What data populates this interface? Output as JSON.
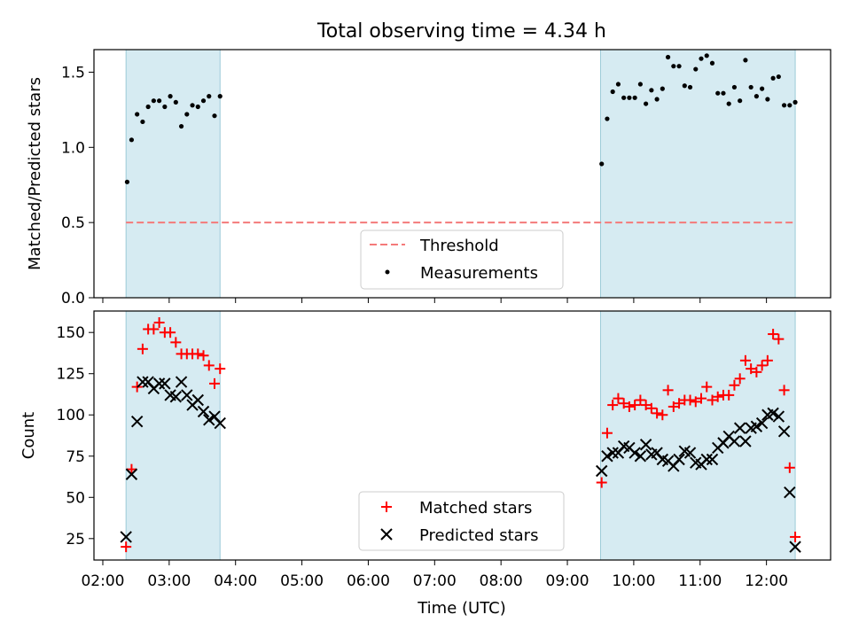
{
  "figure": {
    "title": "Total observing time = 4.34 h",
    "xlabel": "Time (UTC)",
    "x_ticks": [
      "02:00",
      "03:00",
      "04:00",
      "05:00",
      "06:00",
      "07:00",
      "08:00",
      "09:00",
      "10:00",
      "11:00",
      "12:00"
    ]
  },
  "chart_data": [
    {
      "type": "scatter",
      "ylabel": "Matched/Predicted stars",
      "xlim": [
        "01:52",
        "12:58"
      ],
      "ylim": [
        0,
        1.65
      ],
      "y_ticks": [
        "0.0",
        "0.5",
        "1.0",
        "1.5"
      ],
      "legend": {
        "placement": "bottom-center",
        "entries": [
          "Threshold",
          "Measurements"
        ]
      },
      "shaded_intervals": [
        [
          "02:21",
          "03:46"
        ],
        [
          "09:30",
          "12:26"
        ]
      ],
      "threshold": {
        "name": "Threshold",
        "value": 0.5,
        "x_range": [
          "02:21",
          "12:26"
        ],
        "color": "#f47a7a"
      },
      "series": [
        {
          "name": "Measurements",
          "color": "#000000",
          "points": [
            [
              "02:22",
              0.77
            ],
            [
              "02:26",
              1.05
            ],
            [
              "02:31",
              1.22
            ],
            [
              "02:36",
              1.17
            ],
            [
              "02:41",
              1.27
            ],
            [
              "02:46",
              1.31
            ],
            [
              "02:51",
              1.31
            ],
            [
              "02:56",
              1.27
            ],
            [
              "03:01",
              1.34
            ],
            [
              "03:06",
              1.3
            ],
            [
              "03:11",
              1.14
            ],
            [
              "03:16",
              1.22
            ],
            [
              "03:21",
              1.28
            ],
            [
              "03:26",
              1.27
            ],
            [
              "03:31",
              1.31
            ],
            [
              "03:36",
              1.34
            ],
            [
              "03:41",
              1.21
            ],
            [
              "03:46",
              1.34
            ],
            [
              "09:31",
              0.89
            ],
            [
              "09:36",
              1.19
            ],
            [
              "09:41",
              1.37
            ],
            [
              "09:46",
              1.42
            ],
            [
              "09:51",
              1.33
            ],
            [
              "09:56",
              1.33
            ],
            [
              "10:01",
              1.33
            ],
            [
              "10:06",
              1.42
            ],
            [
              "10:11",
              1.29
            ],
            [
              "10:16",
              1.38
            ],
            [
              "10:21",
              1.32
            ],
            [
              "10:26",
              1.39
            ],
            [
              "10:31",
              1.6
            ],
            [
              "10:36",
              1.54
            ],
            [
              "10:41",
              1.54
            ],
            [
              "10:46",
              1.41
            ],
            [
              "10:51",
              1.4
            ],
            [
              "10:56",
              1.52
            ],
            [
              "11:01",
              1.59
            ],
            [
              "11:06",
              1.61
            ],
            [
              "11:11",
              1.56
            ],
            [
              "11:16",
              1.36
            ],
            [
              "11:21",
              1.36
            ],
            [
              "11:26",
              1.29
            ],
            [
              "11:31",
              1.4
            ],
            [
              "11:36",
              1.31
            ],
            [
              "11:41",
              1.58
            ],
            [
              "11:46",
              1.4
            ],
            [
              "11:51",
              1.34
            ],
            [
              "11:56",
              1.39
            ],
            [
              "12:01",
              1.32
            ],
            [
              "12:06",
              1.46
            ],
            [
              "12:11",
              1.47
            ],
            [
              "12:16",
              1.28
            ],
            [
              "12:21",
              1.28
            ],
            [
              "12:26",
              1.3
            ]
          ]
        }
      ]
    },
    {
      "type": "scatter",
      "ylabel": "Count",
      "xlim": [
        "01:52",
        "12:58"
      ],
      "ylim": [
        12,
        163
      ],
      "y_ticks": [
        "25",
        "50",
        "75",
        "100",
        "125",
        "150"
      ],
      "legend": {
        "placement": "bottom-center",
        "entries": [
          "Matched stars",
          "Predicted stars"
        ]
      },
      "shaded_intervals": [
        [
          "02:21",
          "03:46"
        ],
        [
          "09:30",
          "12:26"
        ]
      ],
      "series": [
        {
          "name": "Matched stars",
          "marker": "+",
          "color": "#ff0000",
          "points": [
            [
              "02:21",
              20
            ],
            [
              "02:26",
              67
            ],
            [
              "02:31",
              117
            ],
            [
              "02:36",
              140
            ],
            [
              "02:41",
              152
            ],
            [
              "02:46",
              152
            ],
            [
              "02:51",
              156
            ],
            [
              "02:56",
              150
            ],
            [
              "03:01",
              150
            ],
            [
              "03:06",
              144
            ],
            [
              "03:11",
              137
            ],
            [
              "03:16",
              137
            ],
            [
              "03:21",
              137
            ],
            [
              "03:26",
              137
            ],
            [
              "03:31",
              136
            ],
            [
              "03:36",
              130
            ],
            [
              "03:41",
              119
            ],
            [
              "03:46",
              128
            ],
            [
              "09:31",
              59
            ],
            [
              "09:36",
              89
            ],
            [
              "09:41",
              106
            ],
            [
              "09:46",
              110
            ],
            [
              "09:51",
              107
            ],
            [
              "09:56",
              105
            ],
            [
              "10:01",
              106
            ],
            [
              "10:06",
              109
            ],
            [
              "10:11",
              106
            ],
            [
              "10:16",
              104
            ],
            [
              "10:21",
              101
            ],
            [
              "10:26",
              100
            ],
            [
              "10:31",
              115
            ],
            [
              "10:36",
              105
            ],
            [
              "10:41",
              107
            ],
            [
              "10:46",
              109
            ],
            [
              "10:51",
              109
            ],
            [
              "10:56",
              108
            ],
            [
              "11:01",
              110
            ],
            [
              "11:06",
              117
            ],
            [
              "11:11",
              109
            ],
            [
              "11:16",
              111
            ],
            [
              "11:21",
              112
            ],
            [
              "11:26",
              112
            ],
            [
              "11:31",
              118
            ],
            [
              "11:36",
              122
            ],
            [
              "11:41",
              133
            ],
            [
              "11:46",
              128
            ],
            [
              "11:51",
              126
            ],
            [
              "11:56",
              130
            ],
            [
              "12:01",
              133
            ],
            [
              "12:06",
              149
            ],
            [
              "12:11",
              146
            ],
            [
              "12:16",
              115
            ],
            [
              "12:21",
              68
            ],
            [
              "12:26",
              26
            ]
          ]
        },
        {
          "name": "Predicted stars",
          "marker": "x",
          "color": "#000000",
          "points": [
            [
              "02:21",
              26
            ],
            [
              "02:26",
              64
            ],
            [
              "02:31",
              96
            ],
            [
              "02:36",
              120
            ],
            [
              "02:41",
              120
            ],
            [
              "02:46",
              116
            ],
            [
              "02:51",
              119
            ],
            [
              "02:56",
              119
            ],
            [
              "03:01",
              112
            ],
            [
              "03:06",
              111
            ],
            [
              "03:11",
              120
            ],
            [
              "03:16",
              112
            ],
            [
              "03:21",
              106
            ],
            [
              "03:26",
              109
            ],
            [
              "03:31",
              102
            ],
            [
              "03:36",
              97
            ],
            [
              "03:41",
              99
            ],
            [
              "03:46",
              95
            ],
            [
              "09:31",
              66
            ],
            [
              "09:36",
              75
            ],
            [
              "09:41",
              77
            ],
            [
              "09:46",
              77
            ],
            [
              "09:51",
              81
            ],
            [
              "09:56",
              80
            ],
            [
              "10:01",
              77
            ],
            [
              "10:06",
              75
            ],
            [
              "10:11",
              82
            ],
            [
              "10:16",
              76
            ],
            [
              "10:21",
              77
            ],
            [
              "10:26",
              73
            ],
            [
              "10:31",
              72
            ],
            [
              "10:36",
              69
            ],
            [
              "10:41",
              73
            ],
            [
              "10:46",
              78
            ],
            [
              "10:51",
              77
            ],
            [
              "10:56",
              71
            ],
            [
              "11:01",
              70
            ],
            [
              "11:06",
              73
            ],
            [
              "11:11",
              73
            ],
            [
              "11:16",
              80
            ],
            [
              "11:21",
              83
            ],
            [
              "11:26",
              87
            ],
            [
              "11:31",
              84
            ],
            [
              "11:36",
              92
            ],
            [
              "11:41",
              84
            ],
            [
              "11:46",
              92
            ],
            [
              "11:51",
              93
            ],
            [
              "11:56",
              95
            ],
            [
              "12:01",
              100
            ],
            [
              "12:06",
              101
            ],
            [
              "12:11",
              99
            ],
            [
              "12:16",
              90
            ],
            [
              "12:21",
              53
            ],
            [
              "12:26",
              20
            ]
          ]
        }
      ]
    }
  ]
}
